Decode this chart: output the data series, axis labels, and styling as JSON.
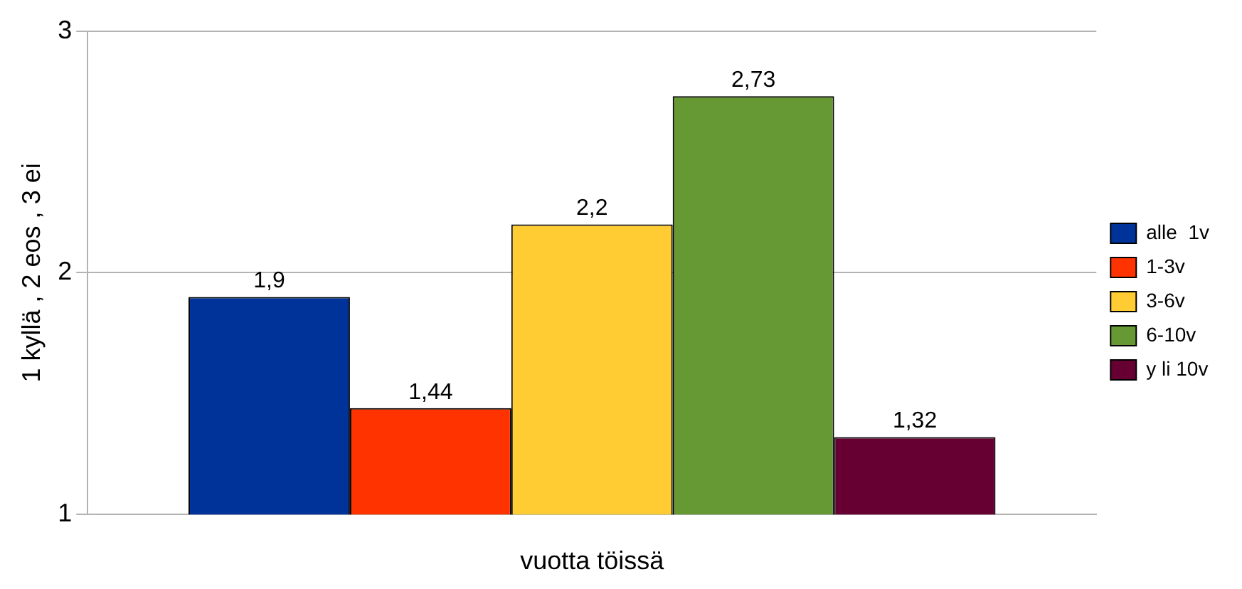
{
  "chart_data": {
    "type": "bar",
    "xlabel": "vuotta töissä",
    "ylabel": "1 kyllä , 2 eos , 3 ei",
    "categories": [
      null
    ],
    "series": [
      {
        "name": "alle  1v",
        "color": "#003399",
        "values": [
          1.9
        ],
        "value_labels": [
          "1,9"
        ]
      },
      {
        "name": "1-3v",
        "color": "#ff3300",
        "values": [
          1.44
        ],
        "value_labels": [
          "1,44"
        ]
      },
      {
        "name": "3-6v",
        "color": "#ffcc33",
        "values": [
          2.2
        ],
        "value_labels": [
          "2,2"
        ]
      },
      {
        "name": "6-10v",
        "color": "#669933",
        "values": [
          2.73
        ],
        "value_labels": [
          "2,73"
        ]
      },
      {
        "name": "y li 10v",
        "color": "#660033",
        "values": [
          1.32
        ],
        "value_labels": [
          "1,32"
        ]
      }
    ],
    "ylim": [
      1,
      3
    ],
    "yticks": [
      1,
      2,
      3
    ],
    "grid": "y",
    "legend": "right"
  }
}
